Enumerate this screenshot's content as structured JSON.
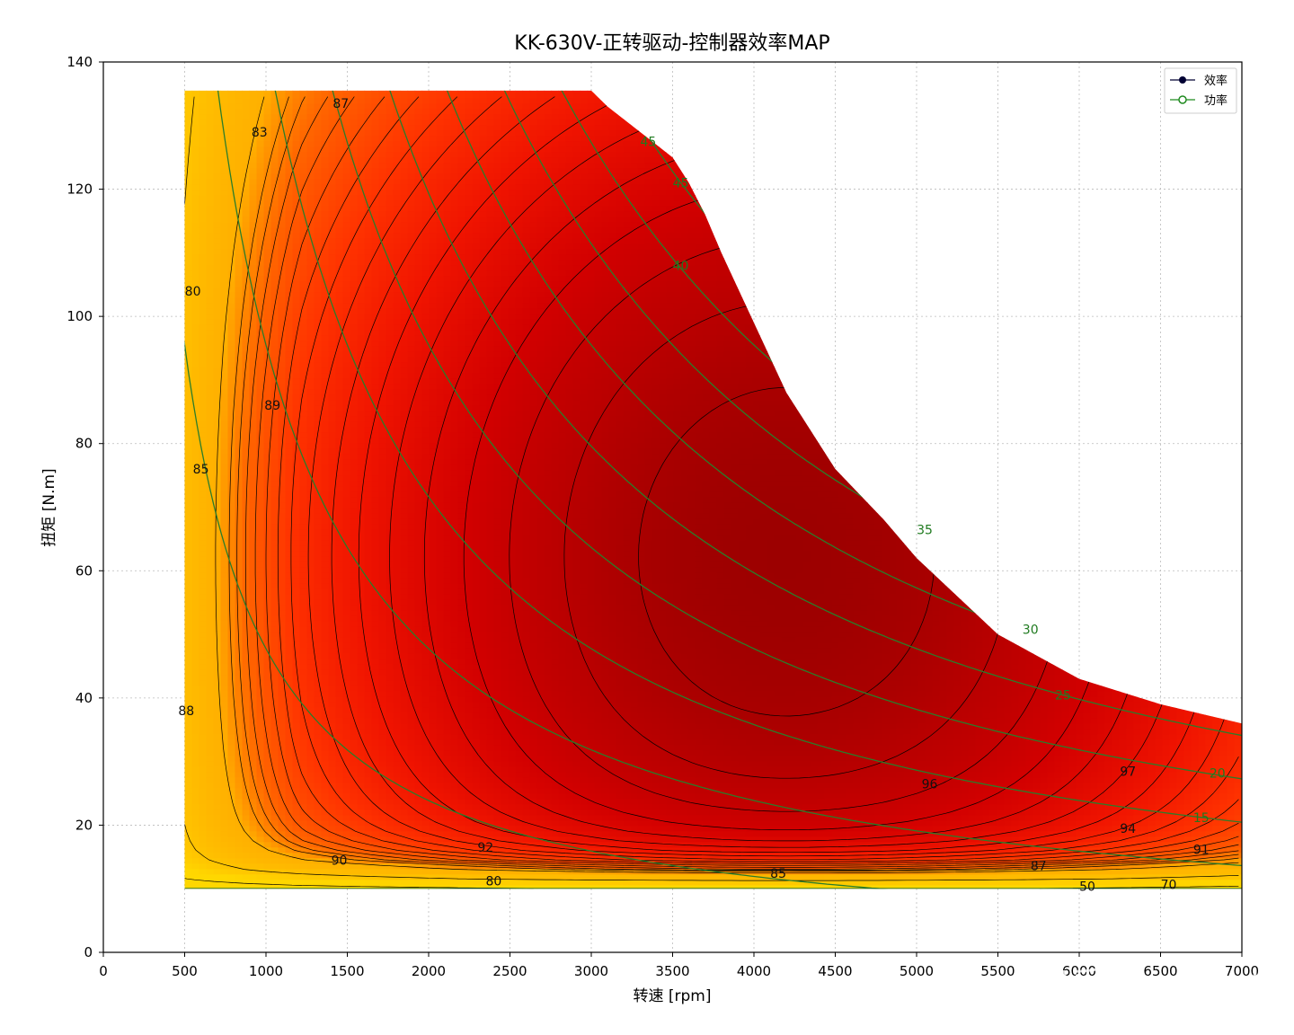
{
  "chart_data": {
    "type": "heatmap",
    "title": "KK-630V-正转驱动-控制器效率MAP",
    "xlabel": "转速 [rpm]",
    "ylabel": "扭矩 [N.m]",
    "xlim": [
      0,
      7000
    ],
    "ylim": [
      0,
      140
    ],
    "x_ticks": [
      0,
      500,
      1000,
      1500,
      2000,
      2500,
      3000,
      3500,
      4000,
      4500,
      5000,
      5500,
      6000,
      6500,
      7000
    ],
    "y_ticks": [
      0,
      20,
      40,
      60,
      80,
      100,
      120,
      140
    ],
    "x_tick_labels": [
      "0",
      "500",
      "1000",
      "1500",
      "2000",
      "2500",
      "3000",
      "3500",
      "4000",
      "4500",
      "5000",
      "5500",
      "6000",
      "6500",
      "7000"
    ],
    "y_tick_labels": [
      "0",
      "20",
      "40",
      "60",
      "80",
      "100",
      "120",
      "140"
    ],
    "grid": true,
    "legend_placement": "top-right",
    "legend": [
      {
        "label": "效率",
        "color": "#000033",
        "marker": "filled-circle"
      },
      {
        "label": "功率",
        "color": "#1f8a1f",
        "marker": "open-circle"
      }
    ],
    "envelope": {
      "speed": [
        500,
        3000,
        3100,
        3300,
        3400,
        3500,
        3600,
        3700,
        3800,
        4000,
        4200,
        4500,
        4800,
        5000,
        5500,
        6000,
        6500,
        7000
      ],
      "max_torque": [
        135.5,
        135.5,
        133,
        129,
        127,
        125,
        121,
        116,
        110,
        99,
        88,
        76,
        68,
        62,
        50,
        43,
        39,
        36
      ],
      "min_torque": 10
    },
    "efficiency_contours": [
      {
        "value": 50,
        "label_at": [
          6050,
          10.4
        ]
      },
      {
        "value": 70,
        "label_at": [
          6550,
          10.7
        ]
      },
      {
        "value": 80,
        "label_at": [
          2400,
          11.2
        ]
      },
      {
        "value": 80,
        "label_at": [
          550,
          104
        ]
      },
      {
        "value": 83,
        "label_at": [
          960,
          129
        ]
      },
      {
        "value": 85,
        "label_at": [
          4150,
          12.4
        ]
      },
      {
        "value": 85,
        "label_at": [
          600,
          76
        ]
      },
      {
        "value": 87,
        "label_at": [
          5750,
          13.6
        ]
      },
      {
        "value": 87,
        "label_at": [
          1460,
          133.5
        ]
      },
      {
        "value": 88,
        "label_at": [
          510,
          38
        ]
      },
      {
        "value": 89,
        "label_at": [
          1040,
          86
        ]
      },
      {
        "value": 90,
        "label_at": [
          1450,
          14.5
        ]
      },
      {
        "value": 91,
        "label_at": [
          6750,
          16.2
        ]
      },
      {
        "value": 92,
        "label_at": [
          2350,
          16.5
        ]
      },
      {
        "value": 94,
        "label_at": [
          6300,
          19.5
        ]
      },
      {
        "value": 96,
        "label_at": [
          5080,
          26.5
        ]
      },
      {
        "value": 97,
        "label_at": [
          6300,
          28.5
        ]
      }
    ],
    "power_contours_kw": [
      {
        "value": 15,
        "label_at": [
          6750,
          21.2
        ]
      },
      {
        "value": 20,
        "label_at": [
          6850,
          28.2
        ]
      },
      {
        "value": 25,
        "label_at": [
          5900,
          40.5
        ]
      },
      {
        "value": 30,
        "label_at": [
          5700,
          50.8
        ]
      },
      {
        "value": 35,
        "label_at": [
          5050,
          66.5
        ]
      },
      {
        "value": 40,
        "label_at": [
          3550,
          108
        ]
      },
      {
        "value": 45,
        "label_at": [
          3550,
          121
        ]
      },
      {
        "value": 45,
        "label_at": [
          3350,
          127.5
        ]
      }
    ],
    "color_scale": {
      "min_color": "#ffb000",
      "mid_color": "#ff2200",
      "max_color": "#990000"
    }
  },
  "watermark": "知乎 @sword"
}
